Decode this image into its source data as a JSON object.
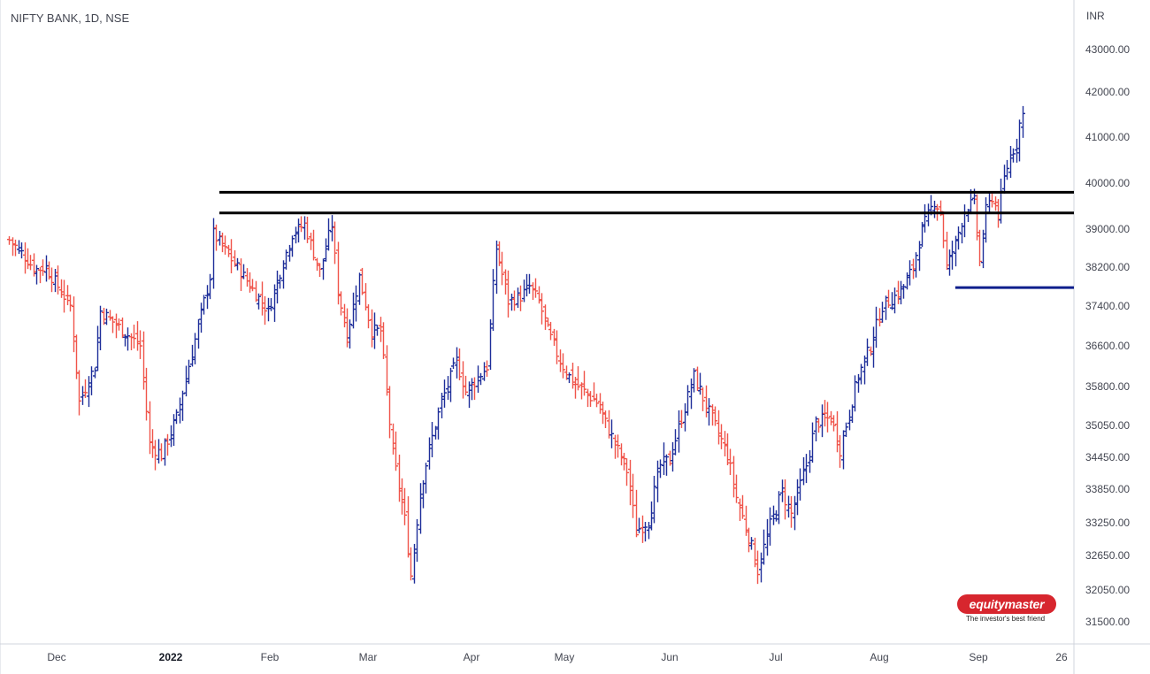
{
  "title": "NIFTY BANK, 1D, NSE",
  "logo": {
    "name": "equitymaster",
    "tagline": "The investor's best friend"
  },
  "colors": {
    "up": "#1e2e9a",
    "down": "#f0544a",
    "level_line": "#000000",
    "support_line": "#0d1f8c",
    "axis_text": "#434651",
    "border": "#d1d4dc"
  },
  "chart_data": {
    "type": "ohlc-bar",
    "currency_label": "INR",
    "y_ticks": [
      43000,
      42000,
      41000,
      40000,
      39000,
      38200,
      37400,
      36600,
      35800,
      35050,
      34450,
      33850,
      33250,
      32650,
      32050,
      31500
    ],
    "x_ticks": [
      {
        "label": "Dec",
        "bold": false
      },
      {
        "label": "2022",
        "bold": true
      },
      {
        "label": "Feb",
        "bold": false
      },
      {
        "label": "Mar",
        "bold": false
      },
      {
        "label": "Apr",
        "bold": false
      },
      {
        "label": "May",
        "bold": false
      },
      {
        "label": "Jun",
        "bold": false
      },
      {
        "label": "Jul",
        "bold": false
      },
      {
        "label": "Aug",
        "bold": false
      },
      {
        "label": "Sep",
        "bold": false
      },
      {
        "label": "26",
        "bold": false
      }
    ],
    "path_points": [
      [
        35300,
        38770
      ],
      [
        35700,
        38500
      ],
      [
        36150,
        38150
      ],
      [
        36500,
        38200
      ],
      [
        37300,
        37400
      ],
      [
        37600,
        35500
      ],
      [
        38100,
        36200
      ],
      [
        38300,
        37300
      ],
      [
        39600,
        36600
      ],
      [
        39900,
        34700
      ],
      [
        40300,
        34500
      ],
      [
        40800,
        35200
      ],
      [
        41900,
        38000
      ],
      [
        42000,
        38900
      ],
      [
        42900,
        38100
      ],
      [
        43800,
        37300
      ],
      [
        44600,
        38900
      ],
      [
        45000,
        39100
      ],
      [
        45500,
        38100
      ],
      [
        45900,
        39100
      ],
      [
        46100,
        37700
      ],
      [
        46400,
        36800
      ],
      [
        46800,
        38000
      ],
      [
        47200,
        36900
      ],
      [
        47500,
        36900
      ],
      [
        47900,
        34500
      ],
      [
        48300,
        33300
      ],
      [
        48500,
        32300
      ],
      [
        48800,
        33800
      ],
      [
        49100,
        34600
      ],
      [
        49500,
        35500
      ],
      [
        50000,
        36300
      ],
      [
        50300,
        35700
      ],
      [
        50600,
        35900
      ],
      [
        51000,
        36200
      ],
      [
        51300,
        38600
      ],
      [
        51700,
        37500
      ],
      [
        52100,
        37600
      ],
      [
        52400,
        37800
      ],
      [
        52700,
        37500
      ],
      [
        53000,
        36900
      ],
      [
        53400,
        36300
      ],
      [
        53800,
        35900
      ],
      [
        54200,
        35700
      ],
      [
        54600,
        35500
      ],
      [
        54900,
        35100
      ],
      [
        55200,
        34700
      ],
      [
        55600,
        34200
      ],
      [
        55900,
        33100
      ],
      [
        56300,
        33300
      ],
      [
        56700,
        34300
      ],
      [
        57000,
        34400
      ],
      [
        57300,
        35000
      ],
      [
        57800,
        36000
      ],
      [
        58300,
        35300
      ],
      [
        58600,
        34900
      ],
      [
        58900,
        34500
      ],
      [
        59200,
        33700
      ],
      [
        59600,
        33000
      ],
      [
        59900,
        32400
      ],
      [
        60300,
        33200
      ],
      [
        60700,
        33800
      ],
      [
        61000,
        33400
      ],
      [
        61500,
        34300
      ],
      [
        61800,
        35100
      ],
      [
        62300,
        35200
      ],
      [
        62600,
        34600
      ],
      [
        62900,
        35300
      ],
      [
        63200,
        36000
      ],
      [
        63600,
        36600
      ],
      [
        64000,
        37400
      ],
      [
        64400,
        37600
      ],
      [
        64700,
        37800
      ],
      [
        65000,
        38200
      ],
      [
        65300,
        39000
      ],
      [
        65700,
        39600
      ],
      [
        65900,
        39400
      ],
      [
        66100,
        38200
      ],
      [
        66400,
        38700
      ],
      [
        66700,
        39400
      ],
      [
        67000,
        39600
      ],
      [
        67200,
        38300
      ],
      [
        67400,
        39400
      ],
      [
        67600,
        39700
      ],
      [
        67800,
        39300
      ],
      [
        68000,
        40100
      ],
      [
        68200,
        40600
      ],
      [
        68400,
        40850
      ],
      [
        68500,
        41300
      ],
      [
        68600,
        41500
      ]
    ],
    "level_lines": [
      39800,
      39350
    ],
    "support_line": {
      "y": 37780,
      "from_x": 66400
    },
    "x_range": [
      35000,
      70300
    ],
    "y_range": [
      31200,
      44050
    ]
  }
}
